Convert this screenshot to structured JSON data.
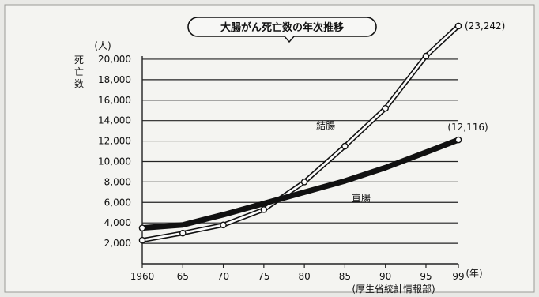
{
  "chart_data": {
    "type": "line",
    "title": "大腸がん死亡数の年次推移",
    "ylabel": "死亡数",
    "yunit": "(人)",
    "xunit": "(年)",
    "source": "(厚生省統計情報部)",
    "categories": [
      "1960",
      "65",
      "70",
      "75",
      "80",
      "85",
      "90",
      "95",
      "99"
    ],
    "x": [
      1960,
      1965,
      1970,
      1975,
      1980,
      1985,
      1990,
      1995,
      1999
    ],
    "ylim": [
      0,
      21000
    ],
    "yticks": [
      2000,
      4000,
      6000,
      8000,
      10000,
      12000,
      14000,
      16000,
      18000,
      20000
    ],
    "ytick_labels": [
      "2,000",
      "4,000",
      "6,000",
      "8,000",
      "10,000",
      "12,000",
      "14,000",
      "16,000",
      "18,000",
      "20,000"
    ],
    "grid": true,
    "series": [
      {
        "name": "結腸",
        "style": "hollow",
        "x": [
          1960,
          1965,
          1970,
          1975,
          1980,
          1985,
          1990,
          1995,
          1999
        ],
        "values": [
          2300,
          3000,
          3800,
          5300,
          8000,
          11500,
          15200,
          20300,
          23242
        ],
        "end_label": "(23,242)"
      },
      {
        "name": "直腸",
        "style": "solid",
        "x": [
          1960,
          1965,
          1970,
          1975,
          1980,
          1985,
          1990,
          1995,
          1999
        ],
        "values": [
          3500,
          3800,
          4800,
          5900,
          7000,
          8100,
          9400,
          10900,
          12116
        ],
        "end_label": "(12,116)"
      }
    ]
  }
}
